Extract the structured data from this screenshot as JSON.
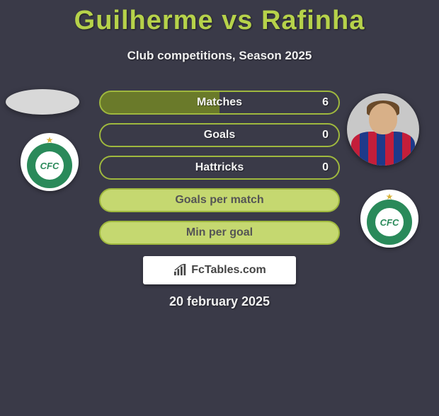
{
  "title": "Guilherme vs Rafinha",
  "subtitle": "Club competitions, Season 2025",
  "stats": [
    {
      "label": "Matches",
      "value": "6",
      "style": "split"
    },
    {
      "label": "Goals",
      "value": "0",
      "style": "outline"
    },
    {
      "label": "Hattricks",
      "value": "0",
      "style": "outline"
    },
    {
      "label": "Goals per match",
      "value": "",
      "style": "filled"
    },
    {
      "label": "Min per goal",
      "value": "",
      "style": "filled"
    }
  ],
  "club_badge_text": "CFC",
  "watermark_text": "FcTables.com",
  "date": "20 february 2025",
  "colors": {
    "background": "#3a3a48",
    "accent": "#b6d24a",
    "bar_border": "#9fb83e",
    "bar_fill_dark": "#6a7a2a",
    "bar_fill_light": "#c5d870",
    "club_green": "#2a8a5a"
  }
}
